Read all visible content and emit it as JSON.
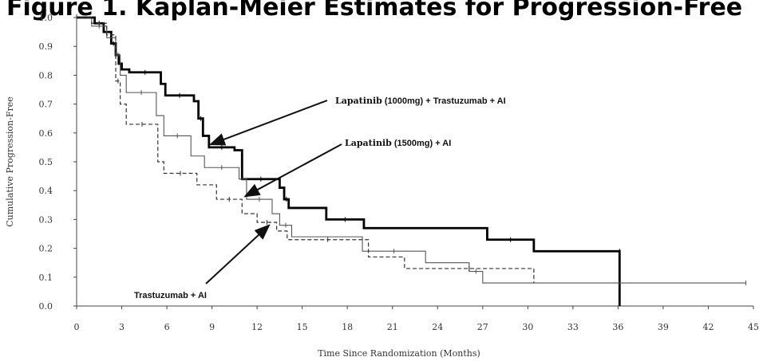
{
  "chart_data": {
    "type": "line",
    "title": "Figure 1. Kaplan-Meier Estimates for Progression-Free",
    "xlabel": "Time Since Randomization (Months)",
    "ylabel": "Cumulative Progression-Free",
    "xlim": [
      0,
      45
    ],
    "ylim": [
      0.0,
      1.0
    ],
    "xticks": [
      0,
      3,
      6,
      9,
      12,
      15,
      18,
      21,
      24,
      27,
      30,
      33,
      36,
      39,
      42,
      45
    ],
    "yticks": [
      "0.0",
      "0.1",
      "0.2",
      "0.3",
      "0.4",
      "0.5",
      "0.6",
      "0.7",
      "0.8",
      "0.9",
      "1.0"
    ],
    "grid": false,
    "series": [
      {
        "name": "Lapatinib (1000mg) + Trastuzumab + AI",
        "style": "thick-solid",
        "color": "#000000",
        "x": [
          0,
          1.2,
          1.8,
          2.3,
          2.6,
          2.8,
          3.0,
          3.5,
          5.6,
          5.9,
          7.8,
          8.1,
          8.4,
          8.8,
          10.5,
          11.0,
          13.5,
          13.8,
          14.1,
          16.6,
          19.1,
          27.3,
          30.4,
          36.1,
          36.1
        ],
        "y": [
          1.0,
          0.98,
          0.95,
          0.91,
          0.87,
          0.84,
          0.82,
          0.81,
          0.77,
          0.73,
          0.71,
          0.65,
          0.59,
          0.55,
          0.54,
          0.44,
          0.41,
          0.37,
          0.34,
          0.3,
          0.27,
          0.23,
          0.19,
          0.19,
          0.0
        ]
      },
      {
        "name": "Lapatinib (1500mg) + AI",
        "style": "thin-solid",
        "color": "#555555",
        "x": [
          0,
          1.0,
          2.0,
          2.6,
          2.9,
          3.3,
          5.3,
          5.8,
          7.6,
          8.5,
          10.8,
          11.3,
          13.0,
          13.5,
          14.3,
          19.0,
          23.2,
          26.1,
          27.0,
          44.5
        ],
        "y": [
          1.0,
          0.97,
          0.93,
          0.87,
          0.8,
          0.74,
          0.66,
          0.59,
          0.52,
          0.48,
          0.44,
          0.37,
          0.32,
          0.28,
          0.24,
          0.19,
          0.15,
          0.12,
          0.08,
          0.08
        ]
      },
      {
        "name": "Trastuzumab + AI",
        "style": "dashed",
        "color": "#333333",
        "x": [
          0,
          1.0,
          2.0,
          2.6,
          2.9,
          3.3,
          5.4,
          5.8,
          8.0,
          9.3,
          11.0,
          12.0,
          13.3,
          14.0,
          19.4,
          21.8,
          30.4
        ],
        "y": [
          1.0,
          0.98,
          0.94,
          0.78,
          0.7,
          0.63,
          0.5,
          0.46,
          0.42,
          0.37,
          0.32,
          0.29,
          0.26,
          0.23,
          0.17,
          0.13,
          0.08
        ]
      }
    ],
    "annotations": [
      {
        "text_bold_serif": "Lapatinib",
        "text_rest": " (1000mg) + Trastuzumab + AI",
        "series": 0,
        "point_x": 8.9,
        "point_y": 0.56
      },
      {
        "text_bold_serif": "Lapatinib",
        "text_rest": " (1500mg) + AI",
        "series": 1,
        "point_x": 11.2,
        "point_y": 0.38
      },
      {
        "text_bold_serif": "",
        "text_rest": "Trastuzumab + AI",
        "series": 2,
        "point_x": 12.8,
        "point_y": 0.28
      }
    ]
  }
}
